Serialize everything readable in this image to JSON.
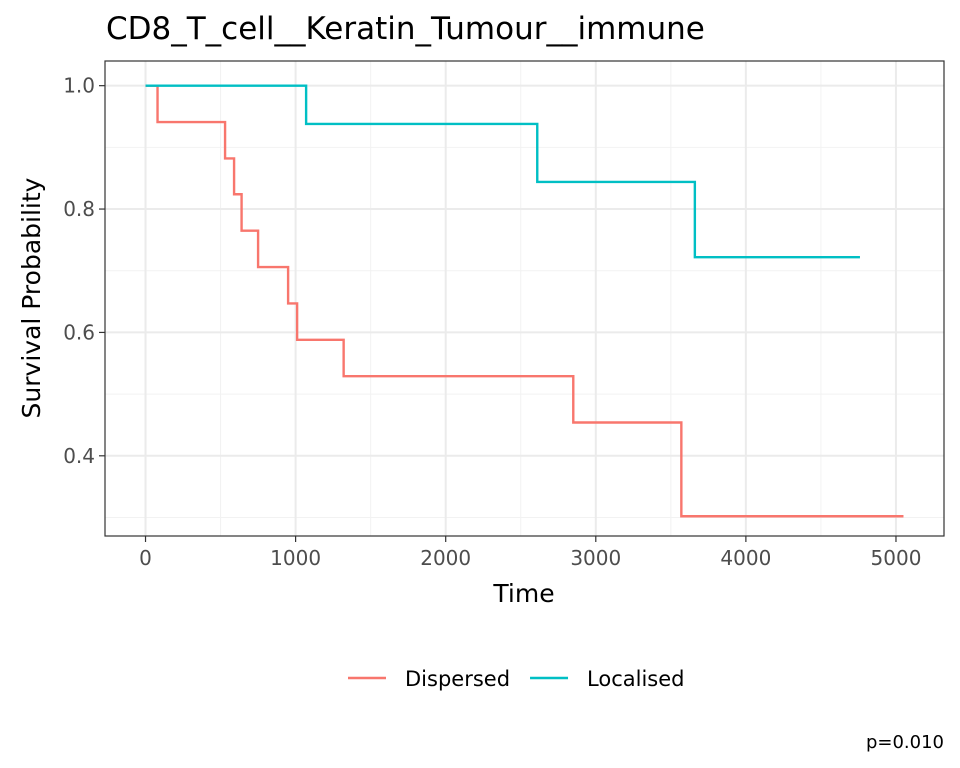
{
  "chart_data": {
    "type": "line",
    "title": "CD8_T_cell__Keratin_Tumour__immune",
    "xlabel": "Time",
    "ylabel": "Survival Probability",
    "xlim": [
      -270,
      5320
    ],
    "ylim": [
      0.27,
      1.04
    ],
    "x_ticks": [
      0,
      1000,
      2000,
      3000,
      4000,
      5000
    ],
    "x_tick_labels": [
      "0",
      "1000",
      "2000",
      "3000",
      "4000",
      "5000"
    ],
    "y_ticks": [
      0.4,
      0.6,
      0.8,
      1.0
    ],
    "y_tick_labels": [
      "0.4",
      "0.6",
      "0.8",
      "1.0"
    ],
    "step": true,
    "grid": true,
    "legend_position": "bottom",
    "annotation": "p=0.010",
    "series": [
      {
        "name": "Dispersed",
        "color": "#F8766D",
        "x": [
          0,
          80,
          530,
          590,
          640,
          750,
          950,
          1010,
          1320,
          2850,
          3570,
          5050
        ],
        "y": [
          1.0,
          0.941,
          0.882,
          0.824,
          0.765,
          0.706,
          0.647,
          0.588,
          0.529,
          0.454,
          0.302,
          0.302
        ]
      },
      {
        "name": "Localised",
        "color": "#00BFC4",
        "x": [
          0,
          1070,
          2610,
          3660,
          4760
        ],
        "y": [
          1.0,
          0.938,
          0.844,
          0.722,
          0.722
        ]
      }
    ]
  }
}
